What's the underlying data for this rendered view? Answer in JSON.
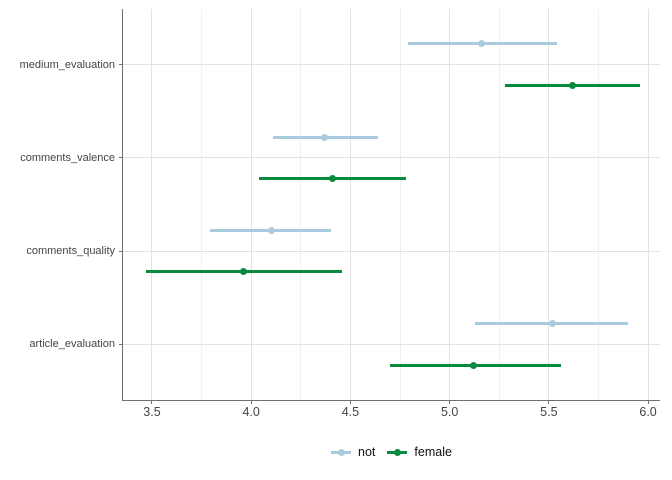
{
  "chart_data": {
    "type": "pointrange",
    "orientation": "horizontal",
    "title": "",
    "xlabel": "",
    "ylabel": "",
    "categories": [
      "medium_evaluation",
      "comments_valence",
      "comments_quality",
      "article_evaluation"
    ],
    "x_ticks": [
      "3.5",
      "4.0",
      "4.5",
      "5.0",
      "5.5",
      "6.0"
    ],
    "x_tick_values": [
      3.5,
      4.0,
      4.5,
      5.0,
      5.5,
      6.0
    ],
    "x_minor_tick_values": [
      3.75,
      4.25,
      4.75,
      5.25,
      5.75
    ],
    "xlim": [
      3.354,
      6.06
    ],
    "grid": {
      "major": true,
      "minor": true
    },
    "legend_position": "bottom",
    "series": [
      {
        "name": "not",
        "color": "#A9CBDE",
        "points": [
          {
            "category": "medium_evaluation",
            "mean": 5.16,
            "lower": 4.79,
            "upper": 5.54
          },
          {
            "category": "comments_valence",
            "mean": 4.37,
            "lower": 4.11,
            "upper": 4.64
          },
          {
            "category": "comments_quality",
            "mean": 4.1,
            "lower": 3.79,
            "upper": 4.4
          },
          {
            "category": "article_evaluation",
            "mean": 5.52,
            "lower": 5.13,
            "upper": 5.9
          }
        ]
      },
      {
        "name": "female",
        "color": "#0A8A3F",
        "points": [
          {
            "category": "medium_evaluation",
            "mean": 5.62,
            "lower": 5.28,
            "upper": 5.96
          },
          {
            "category": "comments_valence",
            "mean": 4.41,
            "lower": 4.04,
            "upper": 4.78
          },
          {
            "category": "comments_quality",
            "mean": 3.96,
            "lower": 3.47,
            "upper": 4.46
          },
          {
            "category": "article_evaluation",
            "mean": 5.12,
            "lower": 4.7,
            "upper": 5.56
          }
        ]
      }
    ],
    "colors": {
      "background": "#FFFFFF",
      "grid_major": "#E2E2E2",
      "grid_minor": "#F0F0F0",
      "axis_line": "#707070",
      "axis_text": "#454545",
      "legend_text": "#111111"
    }
  }
}
